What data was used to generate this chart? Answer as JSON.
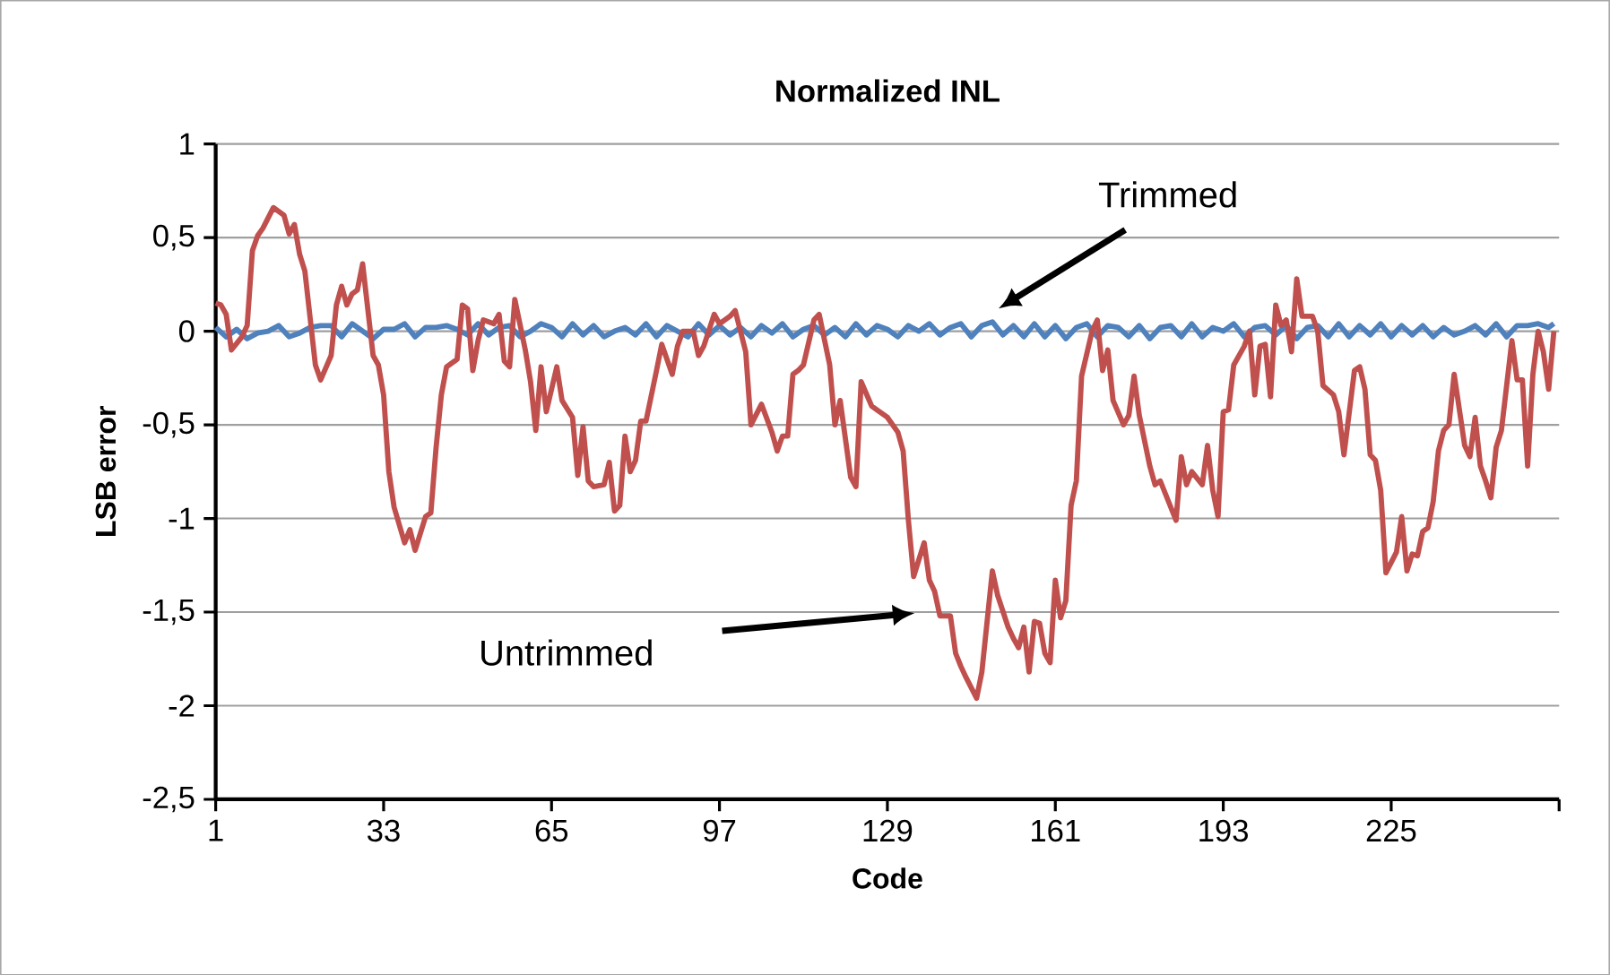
{
  "chart_data": {
    "type": "line",
    "title": "Normalized INL",
    "xlabel": "Code",
    "ylabel": "LSB error",
    "xlim": [
      1,
      257
    ],
    "xticks": [
      1,
      33,
      65,
      97,
      129,
      161,
      193,
      225,
      {
        "value": 257,
        "label": null
      }
    ],
    "ylim": [
      -2.5,
      1
    ],
    "yticks": [
      {
        "value": -2.5,
        "label": "-2,5"
      },
      -2,
      {
        "value": -1.5,
        "label": "-1,5"
      },
      -1,
      {
        "value": -0.5,
        "label": "-0,5"
      },
      0,
      {
        "value": 0.5,
        "label": "0,5"
      },
      1
    ],
    "grid": "y",
    "marker": "none",
    "series": [
      {
        "name": null,
        "color": "#4f81bd",
        "x": [
          1,
          3,
          5,
          7,
          9,
          11,
          13,
          15,
          17,
          19,
          21,
          23,
          25,
          27,
          29,
          31,
          33,
          35,
          37,
          39,
          41,
          43,
          45,
          47,
          49,
          51,
          53,
          55,
          57,
          59,
          61,
          63,
          65,
          67,
          69,
          71,
          73,
          75,
          77,
          79,
          81,
          83,
          85,
          87,
          89,
          91,
          93,
          95,
          97,
          99,
          101,
          103,
          105,
          107,
          109,
          111,
          113,
          115,
          117,
          119,
          121,
          123,
          125,
          127,
          129,
          131,
          133,
          135,
          137,
          139,
          141,
          143,
          145,
          147,
          149,
          151,
          153,
          155,
          157,
          159,
          161,
          163,
          165,
          167,
          169,
          171,
          173,
          175,
          177,
          179,
          181,
          183,
          185,
          187,
          189,
          191,
          193,
          195,
          197,
          199,
          201,
          203,
          205,
          207,
          209,
          211,
          213,
          215,
          217,
          219,
          221,
          223,
          225,
          227,
          229,
          231,
          233,
          235,
          237,
          239,
          241,
          243,
          245,
          247,
          249,
          251,
          253,
          255,
          256
        ],
        "values": [
          0.02,
          -0.03,
          0.01,
          -0.04,
          -0.01,
          0.0,
          0.03,
          -0.03,
          -0.01,
          0.02,
          0.03,
          0.03,
          -0.03,
          0.04,
          0.0,
          -0.04,
          0.01,
          0.01,
          0.04,
          -0.03,
          0.02,
          0.02,
          0.03,
          0.01,
          -0.02,
          0.04,
          -0.02,
          0.02,
          0.03,
          -0.03,
          0.0,
          0.04,
          0.02,
          -0.03,
          0.04,
          -0.02,
          0.03,
          -0.03,
          0.0,
          0.02,
          -0.02,
          0.04,
          -0.03,
          0.03,
          0.0,
          -0.03,
          0.04,
          -0.02,
          0.03,
          -0.02,
          0.02,
          -0.03,
          0.03,
          -0.01,
          0.04,
          -0.03,
          0.01,
          0.03,
          -0.02,
          0.02,
          -0.03,
          0.04,
          -0.02,
          0.03,
          0.01,
          -0.03,
          0.03,
          0.0,
          0.04,
          -0.02,
          0.02,
          0.04,
          -0.03,
          0.03,
          0.05,
          -0.02,
          0.03,
          -0.03,
          0.04,
          -0.03,
          0.03,
          -0.04,
          0.02,
          0.04,
          -0.03,
          0.03,
          0.02,
          -0.03,
          0.03,
          -0.04,
          0.02,
          0.03,
          -0.03,
          0.04,
          -0.03,
          0.02,
          0.0,
          0.04,
          -0.03,
          0.02,
          0.03,
          -0.02,
          0.03,
          -0.04,
          0.02,
          0.03,
          -0.03,
          0.04,
          -0.03,
          0.03,
          -0.02,
          0.04,
          -0.03,
          0.03,
          -0.02,
          0.03,
          -0.03,
          0.02,
          -0.02,
          0.0,
          0.03,
          -0.02,
          0.04,
          -0.03,
          0.03,
          0.03,
          0.04,
          0.02,
          0.04
        ]
      },
      {
        "name": null,
        "color": "#c0504d",
        "x": [
          1,
          2,
          3,
          4,
          6,
          7,
          8,
          9,
          10,
          12,
          14,
          15,
          16,
          17,
          18,
          20,
          21,
          23,
          24,
          25,
          26,
          27,
          28,
          29,
          31,
          32,
          33,
          34,
          35,
          37,
          38,
          39,
          41,
          42,
          43,
          44,
          45,
          47,
          48,
          49,
          50,
          51,
          52,
          54,
          55,
          56,
          57,
          58,
          60,
          61,
          62,
          63,
          64,
          66,
          67,
          69,
          70,
          71,
          72,
          73,
          75,
          76,
          77,
          78,
          79,
          80,
          81,
          82,
          83,
          85,
          86,
          88,
          89,
          90,
          92,
          93,
          94,
          96,
          97,
          98,
          99,
          100,
          102,
          103,
          105,
          107,
          108,
          109,
          110,
          111,
          112,
          113,
          115,
          116,
          118,
          119,
          120,
          122,
          123,
          124,
          126,
          127,
          129,
          131,
          132,
          133,
          134,
          136,
          137,
          138,
          139,
          141,
          142,
          143,
          144,
          146,
          147,
          149,
          150,
          152,
          153,
          154,
          155,
          156,
          157,
          158,
          159,
          160,
          161,
          162,
          163,
          164,
          165,
          166,
          168,
          169,
          170,
          171,
          172,
          174,
          175,
          176,
          177,
          179,
          180,
          181,
          183,
          184,
          185,
          186,
          187,
          189,
          190,
          191,
          192,
          193,
          194,
          195,
          197,
          198,
          199,
          200,
          201,
          202,
          203,
          204,
          205,
          206,
          207,
          208,
          210,
          211,
          212,
          214,
          215,
          216,
          218,
          219,
          220,
          221,
          222,
          223,
          224,
          226,
          227,
          228,
          229,
          230,
          231,
          232,
          233,
          234,
          235,
          236,
          237,
          239,
          240,
          241,
          242,
          243,
          244,
          245,
          246,
          248,
          249,
          250,
          251,
          252,
          253,
          254,
          255,
          256
        ],
        "values": [
          0.15,
          0.14,
          0.09,
          -0.1,
          -0.03,
          0.03,
          0.43,
          0.51,
          0.55,
          0.66,
          0.62,
          0.52,
          0.57,
          0.41,
          0.32,
          -0.18,
          -0.26,
          -0.13,
          0.14,
          0.24,
          0.14,
          0.2,
          0.22,
          0.36,
          -0.13,
          -0.18,
          -0.34,
          -0.75,
          -0.94,
          -1.13,
          -1.06,
          -1.17,
          -0.99,
          -0.97,
          -0.62,
          -0.34,
          -0.19,
          -0.15,
          0.14,
          0.12,
          -0.21,
          -0.05,
          0.06,
          0.04,
          0.09,
          -0.16,
          -0.19,
          0.17,
          -0.1,
          -0.27,
          -0.53,
          -0.19,
          -0.43,
          -0.19,
          -0.37,
          -0.46,
          -0.77,
          -0.51,
          -0.8,
          -0.83,
          -0.82,
          -0.7,
          -0.96,
          -0.93,
          -0.56,
          -0.75,
          -0.69,
          -0.48,
          -0.48,
          -0.21,
          -0.07,
          -0.23,
          -0.08,
          0.0,
          0.0,
          -0.13,
          -0.08,
          0.09,
          0.04,
          0.06,
          0.08,
          0.11,
          -0.11,
          -0.5,
          -0.39,
          -0.54,
          -0.64,
          -0.56,
          -0.56,
          -0.23,
          -0.21,
          -0.18,
          0.06,
          0.09,
          -0.18,
          -0.5,
          -0.37,
          -0.78,
          -0.83,
          -0.27,
          -0.4,
          -0.42,
          -0.46,
          -0.54,
          -0.64,
          -1.01,
          -1.31,
          -1.13,
          -1.33,
          -1.39,
          -1.52,
          -1.52,
          -1.72,
          -1.79,
          -1.85,
          -1.96,
          -1.82,
          -1.28,
          -1.41,
          -1.58,
          -1.64,
          -1.69,
          -1.58,
          -1.82,
          -1.55,
          -1.56,
          -1.72,
          -1.77,
          -1.33,
          -1.53,
          -1.44,
          -0.93,
          -0.8,
          -0.24,
          0.0,
          0.06,
          -0.21,
          -0.1,
          -0.37,
          -0.5,
          -0.45,
          -0.24,
          -0.45,
          -0.72,
          -0.82,
          -0.8,
          -0.94,
          -1.01,
          -0.67,
          -0.82,
          -0.75,
          -0.82,
          -0.61,
          -0.85,
          -0.99,
          -0.43,
          -0.42,
          -0.18,
          -0.08,
          0.0,
          -0.34,
          -0.08,
          -0.07,
          -0.35,
          0.14,
          0.03,
          0.06,
          -0.11,
          0.28,
          0.08,
          0.08,
          0.0,
          -0.29,
          -0.34,
          -0.43,
          -0.66,
          -0.21,
          -0.19,
          -0.31,
          -0.66,
          -0.69,
          -0.85,
          -1.29,
          -1.18,
          -0.99,
          -1.28,
          -1.19,
          -1.2,
          -1.07,
          -1.05,
          -0.91,
          -0.64,
          -0.53,
          -0.5,
          -0.23,
          -0.61,
          -0.67,
          -0.46,
          -0.72,
          -0.8,
          -0.89,
          -0.62,
          -0.53,
          -0.05,
          -0.26,
          -0.26,
          -0.72,
          -0.23,
          0.0,
          -0.11,
          -0.31,
          0.0
        ]
      }
    ],
    "annotations": [
      "Trimmed",
      "Untrimmed"
    ]
  }
}
